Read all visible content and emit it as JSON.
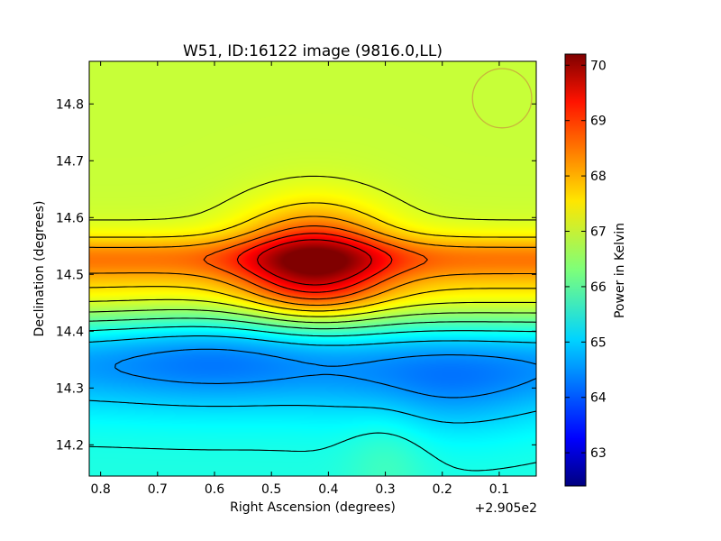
{
  "chart_data": {
    "type": "heatmap",
    "title": "W51, ID:16122 image (9816.0,LL)",
    "xlabel": "Right Ascension (degrees)",
    "ylabel": "Declination (degrees)",
    "x_offset_label": "+2.905e2",
    "xlim": [
      0.82,
      0.035
    ],
    "ylim": [
      14.145,
      14.875
    ],
    "x_ticks": [
      0.8,
      0.7,
      0.6,
      0.5,
      0.4,
      0.3,
      0.2,
      0.1
    ],
    "x_tick_labels": [
      "0.8",
      "0.7",
      "0.6",
      "0.5",
      "0.4",
      "0.3",
      "0.2",
      "0.1"
    ],
    "y_ticks": [
      14.2,
      14.3,
      14.4,
      14.5,
      14.6,
      14.7,
      14.8
    ],
    "y_tick_labels": [
      "14.2",
      "14.3",
      "14.4",
      "14.5",
      "14.6",
      "14.7",
      "14.8"
    ],
    "colorbar": {
      "label": "Power in Kelvin",
      "range": [
        62.4,
        70.2
      ],
      "ticks": [
        63,
        64,
        65,
        66,
        67,
        68,
        69,
        70
      ],
      "tick_labels": [
        "63",
        "64",
        "65",
        "66",
        "67",
        "68",
        "69",
        "70"
      ],
      "colormap": "jet"
    },
    "peak": {
      "ra": 0.425,
      "dec": 14.52,
      "value": 69.8
    },
    "beam": {
      "ra": 0.095,
      "dec": 14.81,
      "radius_deg": 0.052,
      "color": "#c8b43c"
    },
    "grid": false
  }
}
